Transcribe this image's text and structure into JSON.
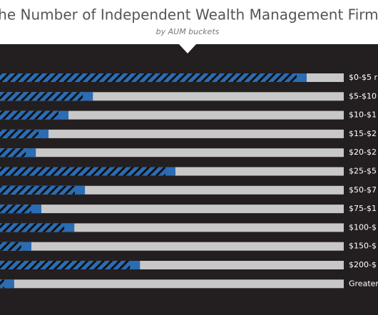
{
  "chart_data": {
    "type": "hbar",
    "title": "The Number of Independent Wealth Management Firms",
    "subtitle": "by AUM buckets",
    "categories": [
      "$0-$5 r",
      "$5-$10",
      "$10-$1",
      "$15-$2",
      "$20-$2",
      "$25-$5",
      "$50-$7",
      "$75-$1",
      "$100-$",
      "$150-$",
      "$200-$",
      "Greater"
    ],
    "values": [
      89.2,
      27,
      19.9,
      14.1,
      10.4,
      51,
      24.7,
      12,
      21.6,
      9.1,
      40.7,
      4.1
    ],
    "xlim": [
      0,
      100
    ],
    "color": "#2b6cb3",
    "track_color": "#c8c8c8"
  }
}
